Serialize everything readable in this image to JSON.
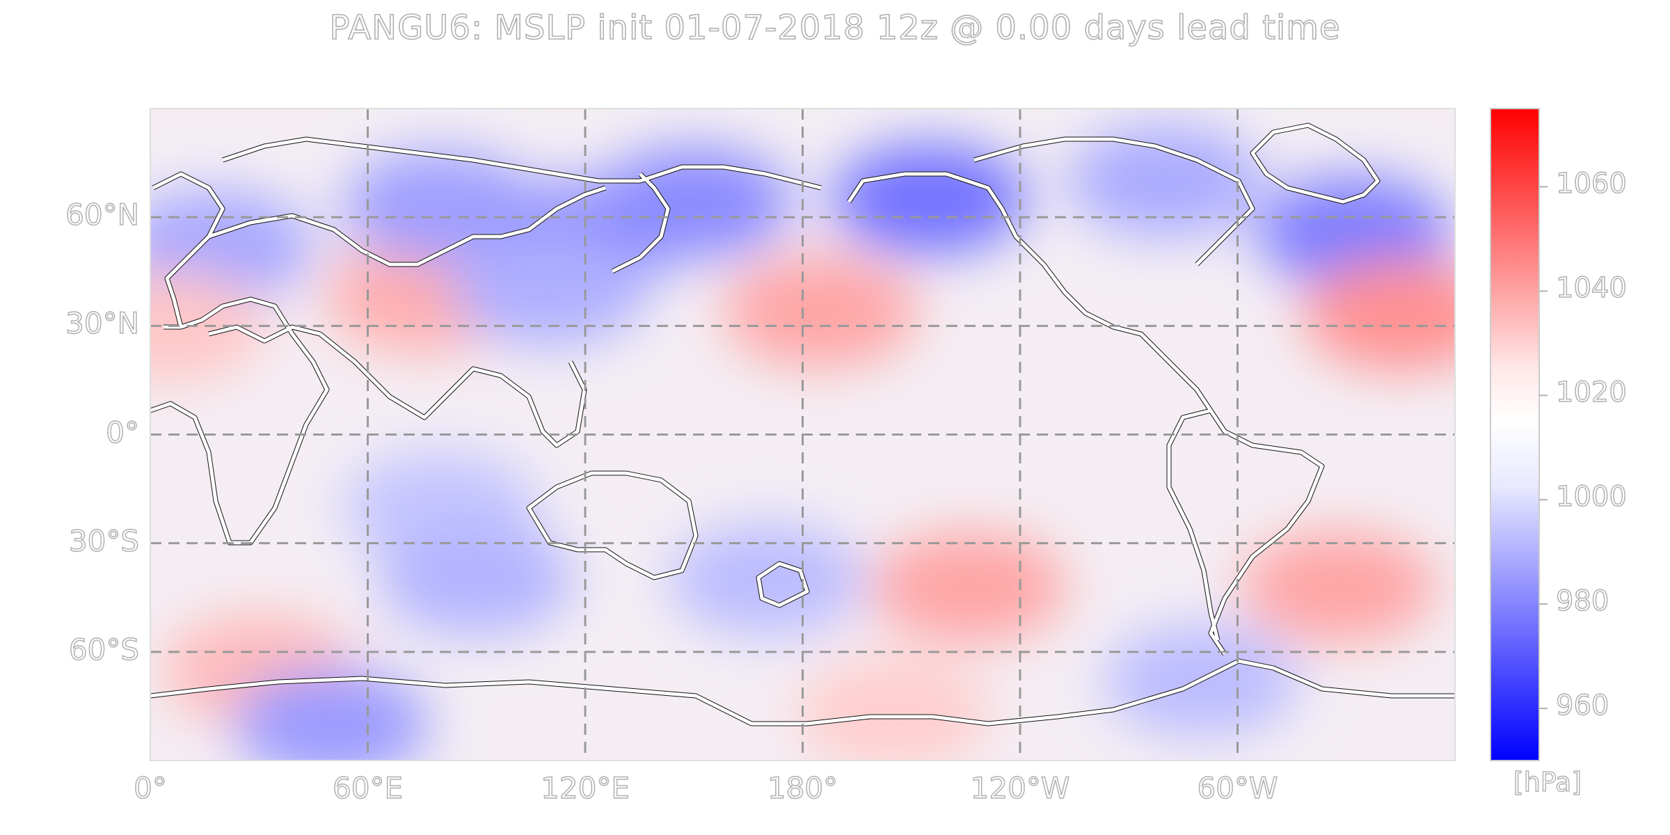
{
  "title": "PANGU6: MSLP init 01-07-2018 12z @ 0.00 days lead time",
  "map": {
    "projection": "equirectangular",
    "extent_lon": [
      0,
      360
    ],
    "extent_lat": [
      -90,
      90
    ],
    "gridlines": "dashed",
    "lat_ticks": [
      {
        "value": 60,
        "label": "60°N"
      },
      {
        "value": 30,
        "label": "30°N"
      },
      {
        "value": 0,
        "label": "0°"
      },
      {
        "value": -30,
        "label": "30°S"
      },
      {
        "value": -60,
        "label": "60°S"
      }
    ],
    "lon_ticks": [
      {
        "value": 0,
        "label": "0°"
      },
      {
        "value": 60,
        "label": "60°E"
      },
      {
        "value": 120,
        "label": "120°E"
      },
      {
        "value": 180,
        "label": "180°"
      },
      {
        "value": 240,
        "label": "120°W"
      },
      {
        "value": 300,
        "label": "60°W"
      }
    ],
    "pressure_anomalies": [
      {
        "lon": 18,
        "lat": 52,
        "hPa": 995
      },
      {
        "lon": 75,
        "lat": 38,
        "hPa": 1022
      },
      {
        "lon": 80,
        "lat": 63,
        "hPa": 993
      },
      {
        "lon": 120,
        "lat": 55,
        "hPa": 990
      },
      {
        "lon": 150,
        "lat": 64,
        "hPa": 988
      },
      {
        "lon": 110,
        "lat": 40,
        "hPa": 997
      },
      {
        "lon": 185,
        "lat": 34,
        "hPa": 1024
      },
      {
        "lon": 215,
        "lat": 65,
        "hPa": 982
      },
      {
        "lon": 280,
        "lat": 70,
        "hPa": 996
      },
      {
        "lon": 332,
        "lat": 56,
        "hPa": 985
      },
      {
        "lon": 345,
        "lat": 33,
        "hPa": 1028
      },
      {
        "lon": 5,
        "lat": 30,
        "hPa": 1018
      },
      {
        "lon": 80,
        "lat": -20,
        "hPa": 1002
      },
      {
        "lon": 90,
        "lat": -40,
        "hPa": 998
      },
      {
        "lon": 170,
        "lat": -40,
        "hPa": 1000
      },
      {
        "lon": 226,
        "lat": -42,
        "hPa": 1024
      },
      {
        "lon": 328,
        "lat": -42,
        "hPa": 1024
      },
      {
        "lon": 30,
        "lat": -65,
        "hPa": 1020
      },
      {
        "lon": 50,
        "lat": -80,
        "hPa": 992
      },
      {
        "lon": 205,
        "lat": -77,
        "hPa": 1017
      },
      {
        "lon": 290,
        "lat": -68,
        "hPa": 1000
      }
    ]
  },
  "colorbar": {
    "unit": "[hPa]",
    "range": [
      950,
      1075
    ],
    "ticks": [
      1060,
      1040,
      1020,
      1000,
      980,
      960
    ],
    "colormap": "bwr",
    "color_low": "#0000ff",
    "color_mid": "#ffffff",
    "color_high": "#ff0000"
  }
}
